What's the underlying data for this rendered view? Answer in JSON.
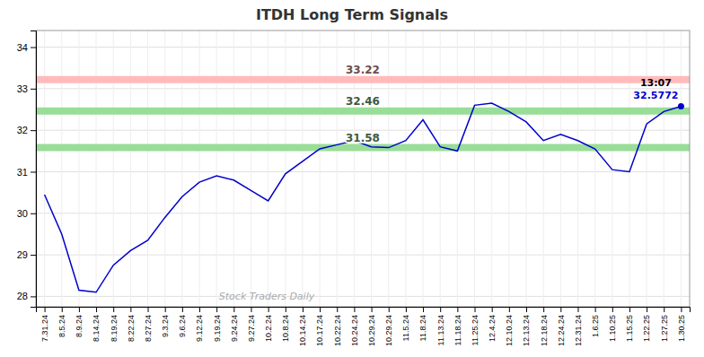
{
  "chart_data": {
    "type": "line",
    "title": "ITDH Long Term Signals",
    "categories": [
      "7.31.24",
      "8.5.24",
      "8.9.24",
      "8.14.24",
      "8.19.24",
      "8.22.24",
      "8.27.24",
      "9.3.24",
      "9.6.24",
      "9.12.24",
      "9.19.24",
      "9.24.24",
      "9.27.24",
      "10.2.24",
      "10.8.24",
      "10.14.24",
      "10.17.24",
      "10.22.24",
      "10.24.24",
      "10.29.24",
      "10.29.24",
      "11.5.24",
      "11.8.24",
      "11.13.24",
      "11.18.24",
      "11.25.24",
      "12.4.24",
      "12.10.24",
      "12.13.24",
      "12.18.24",
      "12.24.24",
      "12.31.24",
      "1.6.25",
      "1.10.25",
      "1.15.25",
      "1.22.25",
      "1.27.25",
      "1.30.25"
    ],
    "series": [
      {
        "color": "#0000cc",
        "values": [
          30.45,
          29.5,
          28.15,
          28.1,
          28.75,
          29.1,
          29.35,
          29.9,
          30.4,
          30.75,
          30.9,
          30.8,
          30.55,
          30.3,
          30.95,
          31.25,
          31.55,
          31.65,
          31.75,
          31.6,
          31.58,
          31.75,
          32.25,
          31.6,
          31.5,
          32.6,
          32.65,
          32.45,
          32.2,
          31.75,
          31.9,
          31.75,
          31.55,
          31.05,
          31.0,
          32.15,
          32.45,
          32.5772
        ]
      }
    ],
    "reference_lines": [
      {
        "value": 33.22,
        "color": "#ffbbbb"
      },
      {
        "value": 32.46,
        "color": "#99dd99"
      },
      {
        "value": 31.58,
        "color": "#99dd99"
      }
    ],
    "end_label": "13:07",
    "watermark": "Stock Traders Daily",
    "ylim": [
      27.75,
      34.4
    ],
    "yticks": [
      28,
      29,
      30,
      31,
      32,
      33,
      34
    ],
    "grid": true
  }
}
